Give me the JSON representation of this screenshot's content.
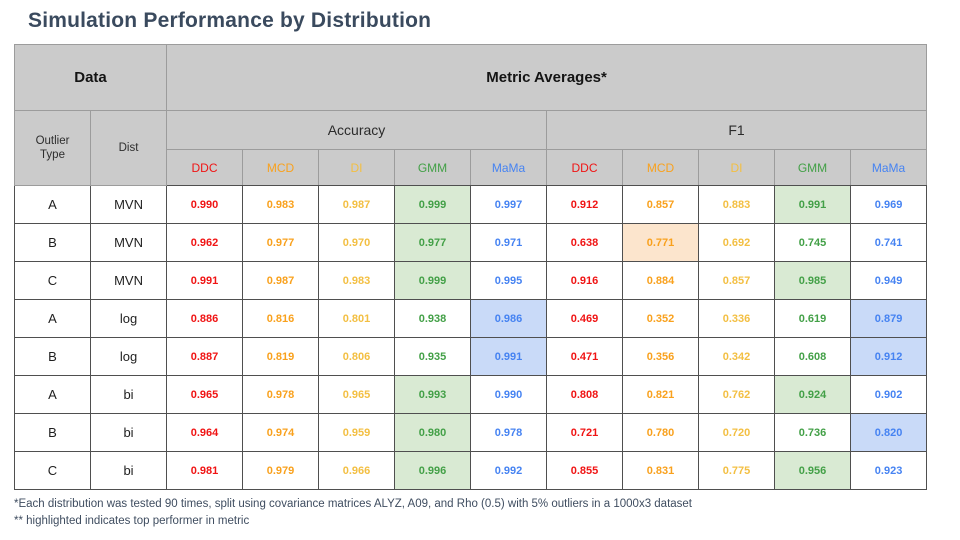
{
  "title": "Simulation Performance by Distribution",
  "table": {
    "header": {
      "data_label": "Data",
      "metric_label": "Metric Averages*",
      "outlier_type_label": "Outlier Type",
      "dist_label": "Dist",
      "accuracy_label": "Accuracy",
      "f1_label": "F1",
      "methods": [
        "DDC",
        "MCD",
        "DI",
        "GMM",
        "MaMa"
      ]
    },
    "rows": [
      {
        "outlier_type": "A",
        "dist": "MVN",
        "accuracy": [
          "0.990",
          "0.983",
          "0.987",
          "0.999",
          "0.997"
        ],
        "f1": [
          "0.912",
          "0.857",
          "0.883",
          "0.991",
          "0.969"
        ],
        "accuracy_highlight": [
          "",
          "",
          "",
          "green",
          ""
        ],
        "f1_highlight": [
          "",
          "",
          "",
          "green",
          ""
        ]
      },
      {
        "outlier_type": "B",
        "dist": "MVN",
        "accuracy": [
          "0.962",
          "0.977",
          "0.970",
          "0.977",
          "0.971"
        ],
        "f1": [
          "0.638",
          "0.771",
          "0.692",
          "0.745",
          "0.741"
        ],
        "accuracy_highlight": [
          "",
          "",
          "",
          "green",
          ""
        ],
        "f1_highlight": [
          "",
          "orange",
          "",
          "",
          ""
        ]
      },
      {
        "outlier_type": "C",
        "dist": "MVN",
        "accuracy": [
          "0.991",
          "0.987",
          "0.983",
          "0.999",
          "0.995"
        ],
        "f1": [
          "0.916",
          "0.884",
          "0.857",
          "0.985",
          "0.949"
        ],
        "accuracy_highlight": [
          "",
          "",
          "",
          "green",
          ""
        ],
        "f1_highlight": [
          "",
          "",
          "",
          "green",
          ""
        ]
      },
      {
        "outlier_type": "A",
        "dist": "log",
        "accuracy": [
          "0.886",
          "0.816",
          "0.801",
          "0.938",
          "0.986"
        ],
        "f1": [
          "0.469",
          "0.352",
          "0.336",
          "0.619",
          "0.879"
        ],
        "accuracy_highlight": [
          "",
          "",
          "",
          "",
          "blue"
        ],
        "f1_highlight": [
          "",
          "",
          "",
          "",
          "blue"
        ]
      },
      {
        "outlier_type": "B",
        "dist": "log",
        "accuracy": [
          "0.887",
          "0.819",
          "0.806",
          "0.935",
          "0.991"
        ],
        "f1": [
          "0.471",
          "0.356",
          "0.342",
          "0.608",
          "0.912"
        ],
        "accuracy_highlight": [
          "",
          "",
          "",
          "",
          "blue"
        ],
        "f1_highlight": [
          "",
          "",
          "",
          "",
          "blue"
        ]
      },
      {
        "outlier_type": "A",
        "dist": "bi",
        "accuracy": [
          "0.965",
          "0.978",
          "0.965",
          "0.993",
          "0.990"
        ],
        "f1": [
          "0.808",
          "0.821",
          "0.762",
          "0.924",
          "0.902"
        ],
        "accuracy_highlight": [
          "",
          "",
          "",
          "green",
          ""
        ],
        "f1_highlight": [
          "",
          "",
          "",
          "green",
          ""
        ]
      },
      {
        "outlier_type": "B",
        "dist": "bi",
        "accuracy": [
          "0.964",
          "0.974",
          "0.959",
          "0.980",
          "0.978"
        ],
        "f1": [
          "0.721",
          "0.780",
          "0.720",
          "0.736",
          "0.820"
        ],
        "accuracy_highlight": [
          "",
          "",
          "",
          "green",
          ""
        ],
        "f1_highlight": [
          "",
          "",
          "",
          "",
          "blue"
        ]
      },
      {
        "outlier_type": "C",
        "dist": "bi",
        "accuracy": [
          "0.981",
          "0.979",
          "0.966",
          "0.996",
          "0.992"
        ],
        "f1": [
          "0.855",
          "0.831",
          "0.775",
          "0.956",
          "0.923"
        ],
        "accuracy_highlight": [
          "",
          "",
          "",
          "green",
          ""
        ],
        "f1_highlight": [
          "",
          "",
          "",
          "green",
          ""
        ]
      }
    ]
  },
  "footnotes": [
    "*Each distribution was tested 90 times, split using covariance matrices ALYZ, A09, and Rho (0.5) with 5% outliers in a 1000x3 dataset",
    "** highlighted indicates top performer in metric"
  ],
  "colors": {
    "method_text": [
      "#f01414",
      "#f9a11d",
      "#f3bf42",
      "#43a047",
      "#4683f2"
    ],
    "highlight": {
      "green": "#d9ead3",
      "blue": "#c9daf8",
      "orange": "#fce5cd"
    },
    "header_background": "#cbcbcb",
    "title_text": "#3a4a5e"
  }
}
